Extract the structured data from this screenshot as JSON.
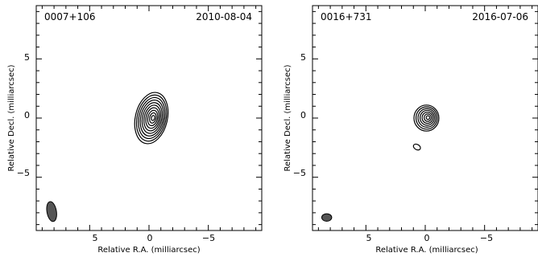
{
  "chart_data": [
    {
      "type": "contour",
      "source": "0007+106",
      "date": "2010-08-04",
      "xlabel": "Relative R.A. (milliarcsec)",
      "ylabel": "Relative Decl. (milliarcsec)",
      "xlim": [
        9.5,
        -9.5
      ],
      "ylim": [
        -9.5,
        9.5
      ],
      "x_ticks": [
        "5",
        "0",
        "−5"
      ],
      "y_ticks": [
        "5",
        "0",
        "−5"
      ],
      "component": {
        "ra": -0.2,
        "dec": 0.0,
        "a": 1.35,
        "b": 2.2,
        "tilt_deg": 13,
        "levels": 10
      },
      "beam": {
        "ra": 8.2,
        "dec": -7.9,
        "a": 0.4,
        "b": 0.85,
        "tilt_deg": -10
      }
    },
    {
      "type": "contour",
      "source": "0016+731",
      "date": "2016-07-06",
      "xlabel": "Relative R.A. (milliarcsec)",
      "ylabel": "Relative Decl. (milliarcsec)",
      "xlim": [
        9.5,
        -9.5
      ],
      "ylim": [
        -9.5,
        9.5
      ],
      "x_ticks": [
        "5",
        "0",
        "−5"
      ],
      "y_ticks": [
        "5",
        "0",
        "−5"
      ],
      "component": {
        "ra": -0.1,
        "dec": 0.0,
        "a": 1.05,
        "b": 1.1,
        "tilt_deg": 0,
        "levels": 7
      },
      "secondary": {
        "ra": 0.7,
        "dec": -2.45,
        "a": 0.32,
        "b": 0.22,
        "tilt_deg": 30
      },
      "beam": {
        "ra": 8.3,
        "dec": -8.4,
        "a": 0.42,
        "b": 0.32,
        "tilt_deg": 0
      }
    }
  ]
}
